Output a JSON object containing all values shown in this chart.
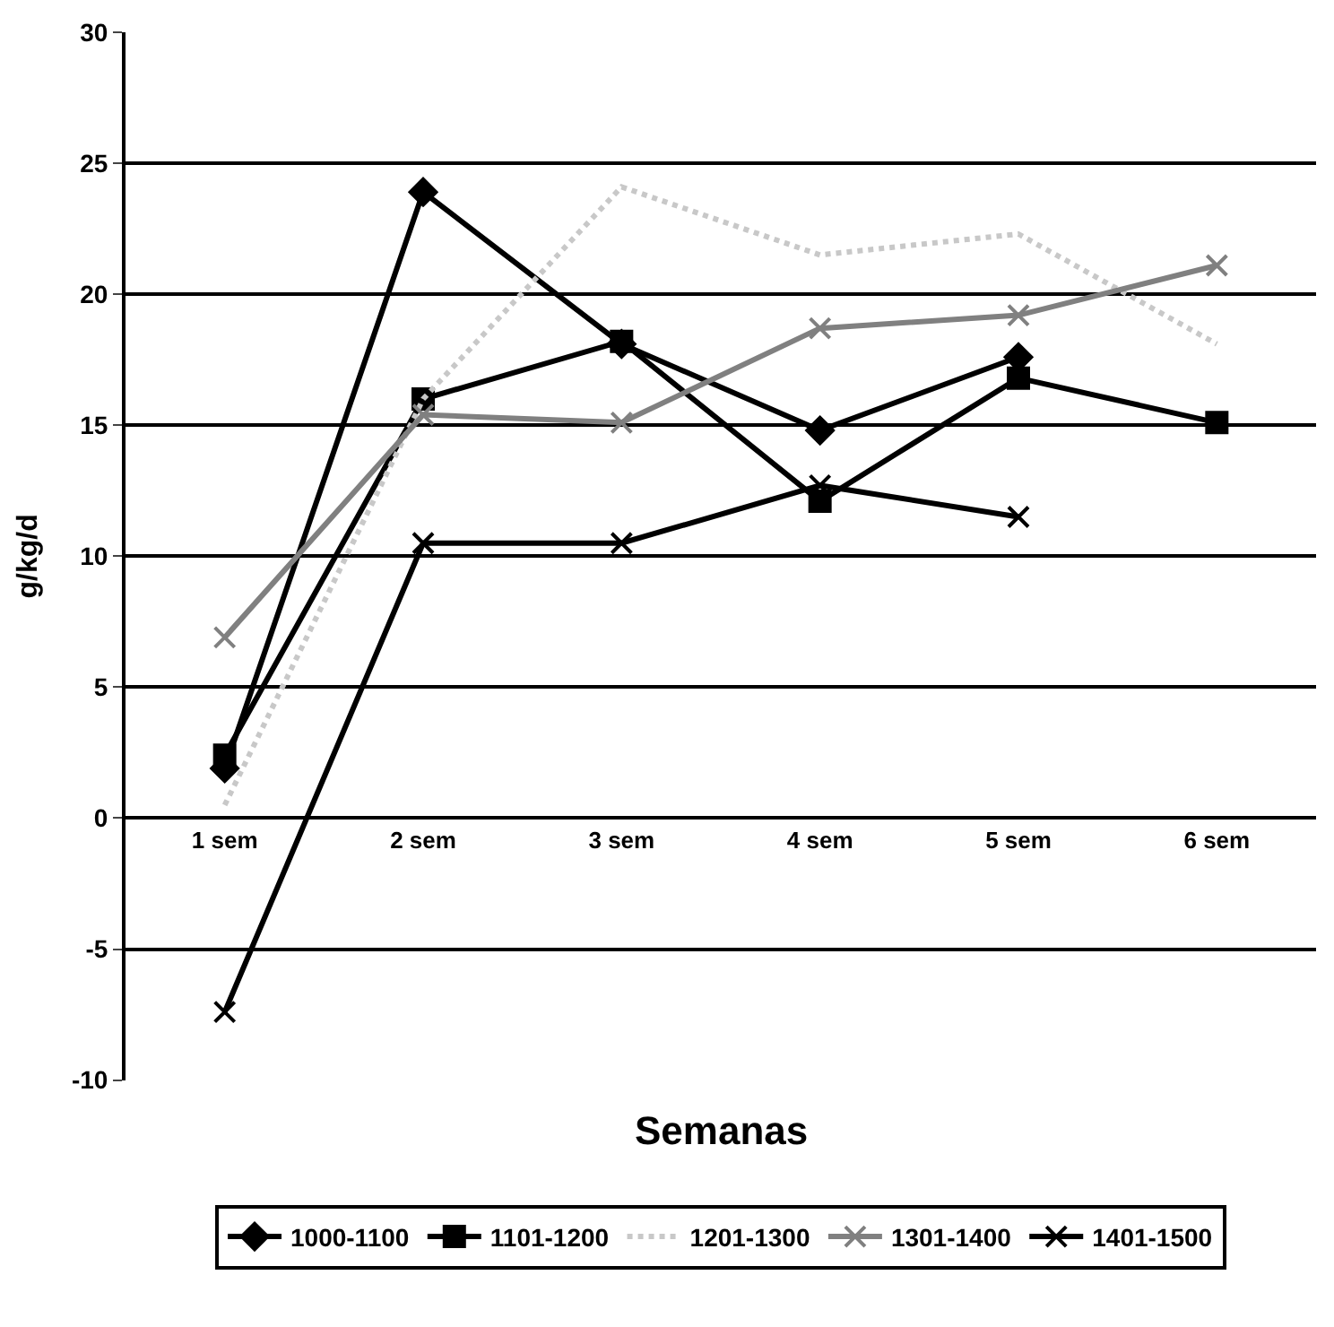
{
  "chart_data": {
    "type": "line",
    "xlabel": "Semanas",
    "ylabel": "g/kg/d",
    "categories": [
      "1 sem",
      "2 sem",
      "3 sem",
      "4 sem",
      "5 sem",
      "6 sem"
    ],
    "series": [
      {
        "name": "1000-1100",
        "color": "#000000",
        "marker": "diamond",
        "values": [
          1.9,
          23.9,
          18.1,
          14.8,
          17.6,
          null
        ]
      },
      {
        "name": "1101-1200",
        "color": "#000000",
        "marker": "square",
        "values": [
          2.4,
          16.0,
          18.2,
          12.1,
          16.8,
          15.1
        ]
      },
      {
        "name": "1201-1300",
        "color": "#c8c8c8",
        "marker": "none",
        "line_style": "dotted",
        "values": [
          0.5,
          16.0,
          24.1,
          21.5,
          22.3,
          18.1
        ]
      },
      {
        "name": "1301-1400",
        "color": "#808080",
        "marker": "cross",
        "values": [
          6.9,
          15.4,
          15.1,
          18.7,
          19.2,
          21.1
        ]
      },
      {
        "name": "1401-1500",
        "color": "#000000",
        "marker": "cross",
        "values": [
          -7.4,
          10.5,
          10.5,
          12.7,
          11.5,
          null
        ]
      }
    ],
    "ylim": [
      -10,
      30
    ],
    "yticks": [
      -10,
      -5,
      0,
      5,
      10,
      15,
      20,
      25,
      30
    ],
    "grid": "y",
    "legend": "bottom"
  }
}
